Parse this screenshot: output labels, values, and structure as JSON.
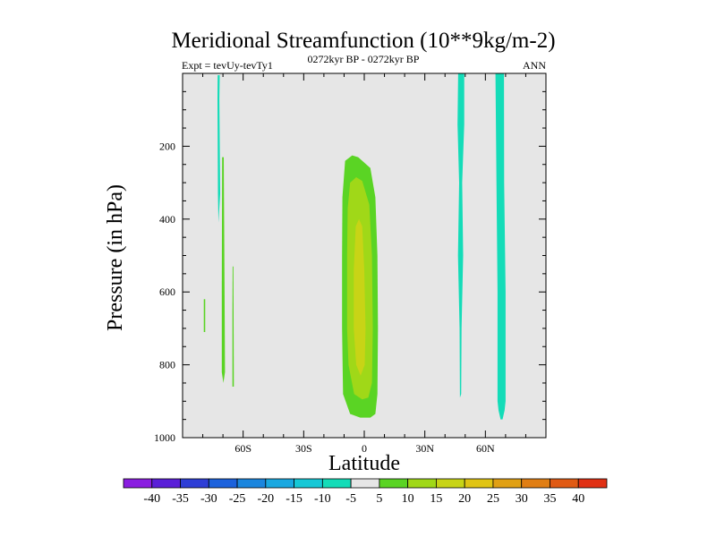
{
  "chart_data": {
    "type": "heatmap",
    "title": "Meridional Streamfunction (10**9kg/m-2)",
    "subtitle_left": "Expt = tevUy-tevTy1",
    "subtitle_center": "0272kyr BP - 0272kyr BP",
    "subtitle_right": "ANN",
    "xlabel": "Latitude",
    "ylabel": "Pressure (in hPa)",
    "xlim": [
      -90,
      90
    ],
    "ylim": [
      1000,
      0
    ],
    "y_reversed": true,
    "x_ticks": [
      {
        "value": -60,
        "label": "60S"
      },
      {
        "value": -30,
        "label": "30S"
      },
      {
        "value": 0,
        "label": "0"
      },
      {
        "value": 30,
        "label": "30N"
      },
      {
        "value": 60,
        "label": "60N"
      }
    ],
    "y_ticks": [
      {
        "value": 200,
        "label": "200"
      },
      {
        "value": 400,
        "label": "400"
      },
      {
        "value": 600,
        "label": "600"
      },
      {
        "value": 800,
        "label": "800"
      },
      {
        "value": 1000,
        "label": "1000"
      }
    ],
    "background_color": "#e6e6e6",
    "colorbar": {
      "labels": [
        "-40",
        "-35",
        "-30",
        "-25",
        "-20",
        "-15",
        "-10",
        "-5",
        "5",
        "10",
        "15",
        "20",
        "25",
        "30",
        "35",
        "40"
      ],
      "colors": [
        "#8a1de0",
        "#5a1fd8",
        "#2e3ed6",
        "#1c62dc",
        "#1b86de",
        "#1aa8e0",
        "#16c8d6",
        "#14dcb8",
        "#e6e6e6",
        "#5ad424",
        "#a0d818",
        "#c8d416",
        "#e0c414",
        "#e0a014",
        "#e07e14",
        "#e05a14",
        "#e03014"
      ]
    },
    "regions": [
      {
        "level": -5,
        "color": "#14dcb8",
        "points": [
          [
            -72.6,
            5
          ],
          [
            -71.6,
            5
          ],
          [
            -71.8,
            70
          ],
          [
            -71.4,
            330
          ],
          [
            -72.2,
            410
          ],
          [
            -72.5,
            330
          ],
          [
            -72.7,
            70
          ]
        ]
      },
      {
        "level": 5,
        "color": "#5ad424",
        "points": [
          [
            -79.5,
            620
          ],
          [
            -78.8,
            620
          ],
          [
            -78.8,
            710
          ],
          [
            -79.5,
            710
          ]
        ]
      },
      {
        "level": 5,
        "color": "#5ad424",
        "points": [
          [
            -70.4,
            230
          ],
          [
            -69.6,
            230
          ],
          [
            -69.2,
            600
          ],
          [
            -69.0,
            820
          ],
          [
            -69.8,
            850
          ],
          [
            -70.6,
            820
          ],
          [
            -70.6,
            600
          ]
        ]
      },
      {
        "level": 5,
        "color": "#5ad424",
        "points": [
          [
            -65.2,
            530
          ],
          [
            -64.8,
            530
          ],
          [
            -64.6,
            860
          ],
          [
            -65.3,
            860
          ],
          [
            -65.3,
            650
          ]
        ]
      },
      {
        "level": 5,
        "color": "#5ad424",
        "points": [
          [
            -9.5,
            240
          ],
          [
            -6,
            225
          ],
          [
            -3,
            230
          ],
          [
            3,
            260
          ],
          [
            5.5,
            340
          ],
          [
            6.5,
            500
          ],
          [
            6.8,
            700
          ],
          [
            6.5,
            880
          ],
          [
            5.5,
            935
          ],
          [
            3,
            945
          ],
          [
            -2,
            945
          ],
          [
            -7,
            935
          ],
          [
            -10.5,
            880
          ],
          [
            -11,
            700
          ],
          [
            -11,
            500
          ],
          [
            -10.8,
            340
          ]
        ]
      },
      {
        "level": 10,
        "color": "#a0d818",
        "points": [
          [
            -7,
            300
          ],
          [
            -4,
            285
          ],
          [
            -1,
            295
          ],
          [
            2.5,
            360
          ],
          [
            3.8,
            500
          ],
          [
            4.2,
            700
          ],
          [
            3.8,
            850
          ],
          [
            2,
            890
          ],
          [
            -1,
            895
          ],
          [
            -5,
            880
          ],
          [
            -7.8,
            800
          ],
          [
            -8.5,
            700
          ],
          [
            -8.5,
            500
          ],
          [
            -8.2,
            370
          ]
        ]
      },
      {
        "level": 15,
        "color": "#c8d416",
        "points": [
          [
            -4.2,
            420
          ],
          [
            -2.6,
            400
          ],
          [
            -1,
            420
          ],
          [
            0,
            540
          ],
          [
            0.6,
            700
          ],
          [
            0.2,
            800
          ],
          [
            -1.8,
            830
          ],
          [
            -4,
            800
          ],
          [
            -5.2,
            700
          ],
          [
            -5.2,
            540
          ]
        ]
      },
      {
        "level": -5,
        "color": "#14dcb8",
        "points": [
          [
            46.5,
            0
          ],
          [
            49.5,
            0
          ],
          [
            49.5,
            140
          ],
          [
            48.5,
            300
          ],
          [
            49.0,
            500
          ],
          [
            48.2,
            700
          ],
          [
            48.0,
            880
          ],
          [
            47.4,
            890
          ],
          [
            47.2,
            700
          ],
          [
            46.4,
            500
          ],
          [
            47.0,
            300
          ],
          [
            46.2,
            140
          ]
        ]
      },
      {
        "level": -5,
        "color": "#14dcb8",
        "points": [
          [
            65,
            0
          ],
          [
            69.2,
            0
          ],
          [
            69.3,
            300
          ],
          [
            70,
            600
          ],
          [
            70,
            900
          ],
          [
            69.5,
            925
          ],
          [
            68.5,
            950
          ],
          [
            67.5,
            950
          ],
          [
            66.5,
            925
          ],
          [
            66,
            900
          ],
          [
            66,
            600
          ],
          [
            65.5,
            300
          ]
        ]
      }
    ]
  }
}
